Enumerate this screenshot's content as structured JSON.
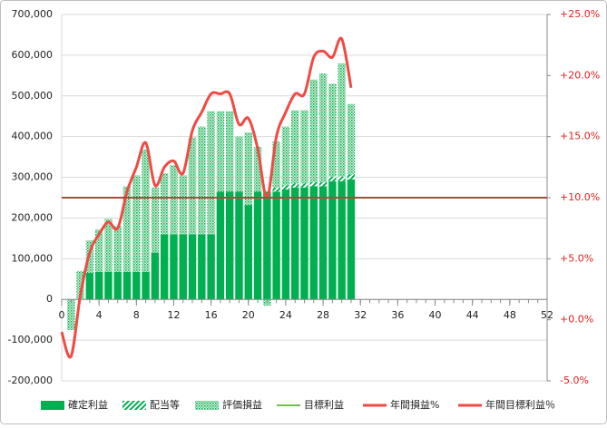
{
  "chart_data": {
    "type": "bar",
    "stacked": true,
    "x": [
      0,
      1,
      2,
      3,
      4,
      5,
      6,
      7,
      8,
      9,
      10,
      11,
      12,
      13,
      14,
      15,
      16,
      17,
      18,
      19,
      20,
      21,
      22,
      23,
      24,
      25,
      26,
      27,
      28,
      29,
      30,
      31
    ],
    "xlim": [
      0,
      52
    ],
    "xticks": [
      0,
      4,
      8,
      12,
      16,
      20,
      24,
      28,
      32,
      36,
      40,
      44,
      48,
      52
    ],
    "ylim": [
      -200000,
      700000
    ],
    "yticks": [
      {
        "value": -200000,
        "label": "-200,000"
      },
      {
        "value": -100000,
        "label": "-100,000"
      },
      0,
      {
        "value": 100000,
        "label": "100,000"
      },
      {
        "value": 200000,
        "label": "200,000"
      },
      {
        "value": 300000,
        "label": "300,000"
      },
      {
        "value": 400000,
        "label": "400,000"
      },
      {
        "value": 500000,
        "label": "500,000"
      },
      {
        "value": 600000,
        "label": "600,000"
      },
      {
        "value": 700000,
        "label": "700,000"
      }
    ],
    "y2lim": [
      -5,
      25
    ],
    "y2ticks": [
      {
        "value": -5,
        "label": "-5.0%"
      },
      {
        "value": 0,
        "label": "+0.0%"
      },
      {
        "value": 5,
        "label": "+5.0%"
      },
      {
        "value": 10,
        "label": "+10.0%"
      },
      {
        "value": 15,
        "label": "+15.0%"
      },
      {
        "value": 20,
        "label": "+20.0%"
      },
      {
        "value": 25,
        "label": "+25.0%"
      }
    ],
    "grid": true,
    "legend": "bottom",
    "series": [
      {
        "name": "確定利益",
        "type": "bar",
        "color": "#00b050",
        "pattern": "solid",
        "values": [
          null,
          0,
          0,
          65000,
          68000,
          68000,
          68000,
          68000,
          68000,
          68000,
          115000,
          160000,
          160000,
          160000,
          160000,
          160000,
          160000,
          265000,
          265000,
          265000,
          232000,
          265000,
          265000,
          265000,
          270000,
          275000,
          275000,
          278000,
          278000,
          290000,
          290000,
          295000
        ]
      },
      {
        "name": "配当等",
        "type": "bar",
        "color": "#00b050",
        "pattern": "diagonal",
        "values": [
          null,
          0,
          0,
          0,
          0,
          0,
          0,
          0,
          0,
          0,
          0,
          0,
          0,
          0,
          0,
          0,
          0,
          0,
          0,
          0,
          0,
          0,
          0,
          10000,
          10000,
          10000,
          10000,
          10000,
          10000,
          12000,
          12000,
          12000
        ]
      },
      {
        "name": "評価損益",
        "type": "bar",
        "color": "#00b050",
        "pattern": "dots",
        "values": [
          null,
          -75000,
          70000,
          80000,
          104000,
          130000,
          112000,
          210000,
          237000,
          300000,
          160000,
          150000,
          170000,
          145000,
          238000,
          265000,
          302000,
          197000,
          197000,
          135000,
          178000,
          110000,
          -15000,
          113000,
          145000,
          180000,
          180000,
          252000,
          267000,
          228000,
          278000,
          173000
        ]
      },
      {
        "name": "目標利益",
        "type": "hline",
        "color": "#70c050",
        "value": 250000
      },
      {
        "name": "年間損益%",
        "type": "line",
        "axis": "y2",
        "color": "#f04a44",
        "values": [
          -1,
          -3,
          2,
          5.5,
          7,
          8,
          7.5,
          10.5,
          12.5,
          14.5,
          11,
          12.5,
          13,
          12,
          15.5,
          17,
          18.5,
          18.5,
          18.5,
          16,
          16.5,
          14,
          10,
          15,
          17,
          18.5,
          18.5,
          21.5,
          22,
          21.5,
          23,
          19
        ]
      },
      {
        "name": "年間目標利益％",
        "type": "hline",
        "axis": "y2",
        "color": "#b5473a",
        "value": 10
      }
    ]
  }
}
